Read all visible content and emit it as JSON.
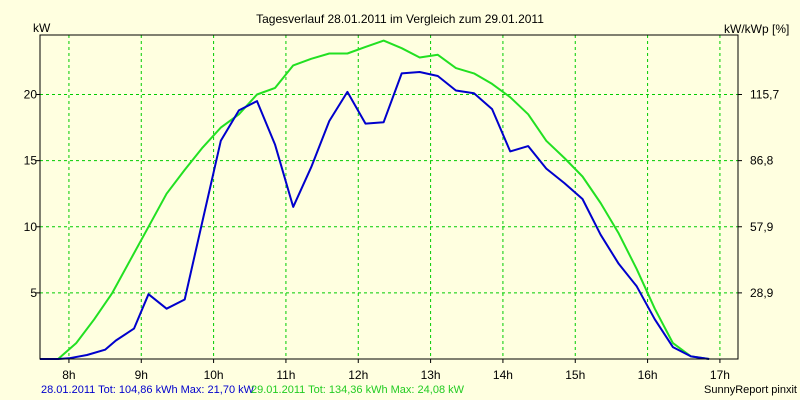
{
  "chart_data": {
    "type": "line",
    "title": "Tagesverlauf 28.01.2011 im Vergleich zum 29.01.2011",
    "ylabel_left": "kW",
    "ylabel_right": "kW/kWp [%]",
    "x_ticks": [
      "8h",
      "9h",
      "10h",
      "11h",
      "12h",
      "13h",
      "14h",
      "15h",
      "16h",
      "17h"
    ],
    "x_range": [
      7.6,
      17.25
    ],
    "y_ticks_left": [
      "5",
      "10",
      "15",
      "20"
    ],
    "y_ticks_left_values": [
      5,
      10,
      15,
      20
    ],
    "y_ticks_right": [
      "28,9",
      "57,9",
      "86,8",
      "115,7"
    ],
    "ylim": [
      0,
      24.5
    ],
    "grid": true,
    "colors": {
      "background": "#ffffe0",
      "grid": "#00cc00",
      "series_1": "#0000cc",
      "series_2": "#22e022"
    },
    "series": [
      {
        "name": "28.01.2011",
        "x": [
          7.6,
          7.85,
          8.0,
          8.25,
          8.5,
          8.65,
          8.9,
          9.1,
          9.35,
          9.6,
          9.85,
          10.1,
          10.35,
          10.6,
          10.85,
          11.1,
          11.35,
          11.6,
          11.85,
          12.1,
          12.35,
          12.6,
          12.85,
          13.1,
          13.35,
          13.6,
          13.85,
          14.1,
          14.35,
          14.6,
          14.85,
          15.1,
          15.35,
          15.6,
          15.85,
          16.1,
          16.35,
          16.6,
          16.85
        ],
        "values": [
          0,
          0,
          0.05,
          0.3,
          0.7,
          1.4,
          2.3,
          4.9,
          3.8,
          4.5,
          10.5,
          16.5,
          18.8,
          19.5,
          16.2,
          11.5,
          14.5,
          18.0,
          20.2,
          17.8,
          17.9,
          21.6,
          21.7,
          21.4,
          20.3,
          20.1,
          18.9,
          15.7,
          16.1,
          14.4,
          13.3,
          12.1,
          9.4,
          7.2,
          5.5,
          3.0,
          0.9,
          0.2,
          0
        ]
      },
      {
        "name": "29.01.2011",
        "x": [
          7.6,
          7.85,
          8.1,
          8.35,
          8.6,
          8.85,
          9.1,
          9.35,
          9.6,
          9.85,
          10.1,
          10.35,
          10.6,
          10.85,
          11.1,
          11.35,
          11.6,
          11.85,
          12.1,
          12.35,
          12.6,
          12.85,
          13.1,
          13.35,
          13.6,
          13.85,
          14.1,
          14.35,
          14.6,
          14.85,
          15.1,
          15.35,
          15.6,
          15.85,
          16.1,
          16.35,
          16.6,
          16.85
        ],
        "values": [
          0,
          0,
          1.2,
          3.0,
          5.0,
          7.5,
          10.0,
          12.5,
          14.3,
          16.0,
          17.5,
          18.5,
          20.0,
          20.5,
          22.2,
          22.7,
          23.1,
          23.1,
          23.6,
          24.08,
          23.5,
          22.8,
          23.0,
          22.0,
          21.6,
          20.8,
          19.8,
          18.5,
          16.5,
          15.2,
          13.8,
          11.8,
          9.5,
          6.8,
          3.8,
          1.2,
          0.2,
          0
        ]
      }
    ],
    "footer": {
      "series_1_text": "28.01.2011 Tot: 104,86 kWh Max: 21,70 kW",
      "series_2_text": "29.01.2011 Tot: 134,36 kWh Max: 24,08 kW",
      "credit": "SunnyReport pinxit"
    }
  }
}
